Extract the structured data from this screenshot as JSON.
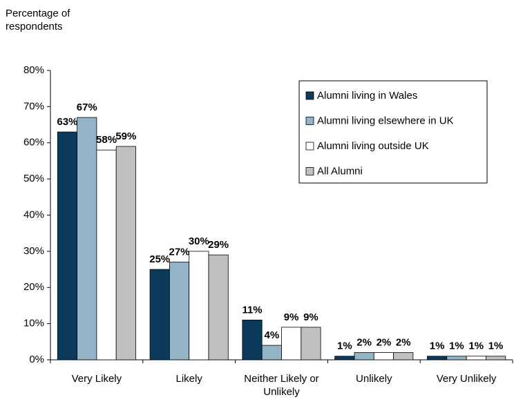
{
  "chart_data": {
    "type": "bar",
    "y_label": "Percentage of respondents",
    "categories": [
      "Very Likely",
      "Likely",
      "Neither Likely or Unlikely",
      "Unlikely",
      "Very Unlikely"
    ],
    "series": [
      {
        "name": "Alumni living in Wales",
        "color": "#0b3a5b",
        "values": [
          63,
          25,
          11,
          1,
          1
        ],
        "value_labels": [
          "63%",
          "25%",
          "11%",
          "1%",
          "1%"
        ]
      },
      {
        "name": "Alumni living elsewhere in UK",
        "color": "#93b3c7",
        "values": [
          67,
          27,
          4,
          2,
          1
        ],
        "value_labels": [
          "67%",
          "27%",
          "4%",
          "2%",
          "1%"
        ]
      },
      {
        "name": "Alumni living outside UK",
        "color": "#ffffff",
        "values": [
          58,
          30,
          9,
          2,
          1
        ],
        "value_labels": [
          "58%",
          "30%",
          "9%",
          "2%",
          "1%"
        ]
      },
      {
        "name": "All Alumni",
        "color": "#c0c0c0",
        "values": [
          59,
          29,
          9,
          2,
          1
        ],
        "value_labels": [
          "59%",
          "29%",
          "9%",
          "2%",
          "1%"
        ]
      }
    ],
    "ylim": [
      0,
      80
    ],
    "yticks": [
      {
        "value": 0,
        "label": "0%"
      },
      {
        "value": 10,
        "label": "10%"
      },
      {
        "value": 20,
        "label": "20%"
      },
      {
        "value": 30,
        "label": "30%"
      },
      {
        "value": 40,
        "label": "40%"
      },
      {
        "value": 50,
        "label": "50%"
      },
      {
        "value": 60,
        "label": "60%"
      },
      {
        "value": 70,
        "label": "70%"
      },
      {
        "value": 80,
        "label": "80%"
      }
    ],
    "grid": false,
    "legend": "upper right"
  }
}
